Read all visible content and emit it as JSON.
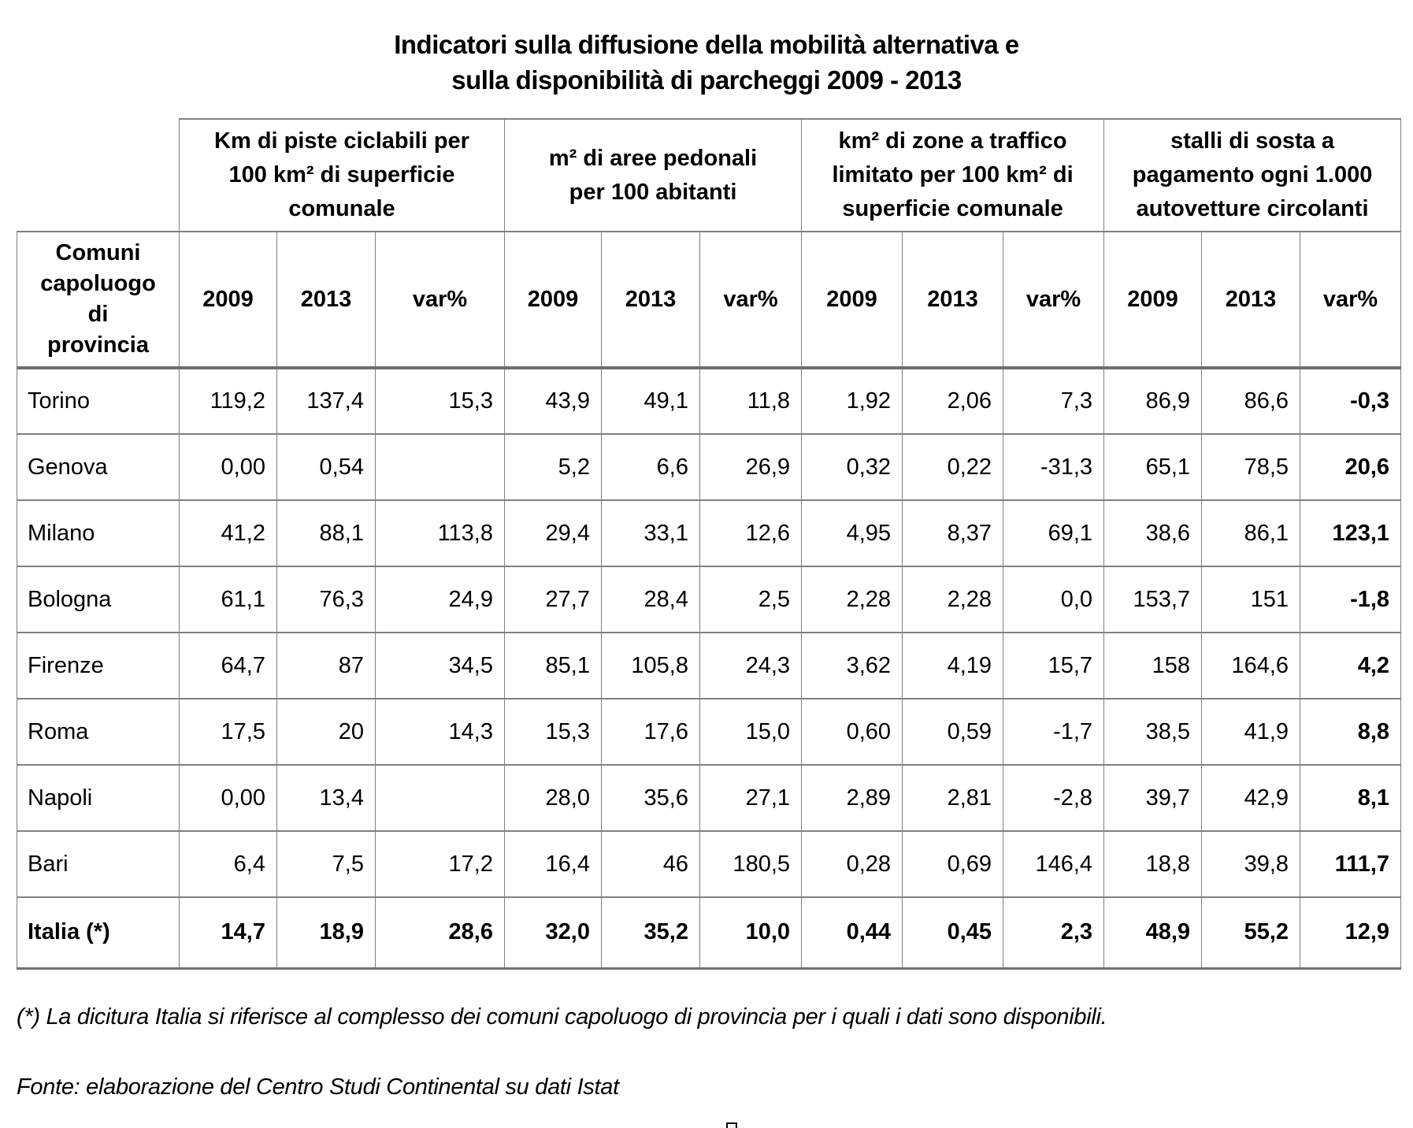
{
  "title": "Indicatori sulla diffusione della mobilità alternativa e\nsulla disponibilità di parcheggi 2009 - 2013",
  "table": {
    "row_header": "Comuni\ncapoluogo\ndi\nprovincia",
    "column_groups": [
      {
        "label": "Km di piste ciclabili per\n100 km² di superficie\ncomunale"
      },
      {
        "label": "m² di aree pedonali\nper 100 abitanti"
      },
      {
        "label": "km² di zone a traffico\nlimitato per 100 km² di\nsuperficie comunale"
      },
      {
        "label": "stalli di sosta a\npagamento ogni 1.000\nautovetture circolanti"
      }
    ],
    "sub_headers": [
      "2009",
      "2013",
      "var%",
      "2009",
      "2013",
      "var%",
      "2009",
      "2013",
      "var%",
      "2009",
      "2013",
      "var%"
    ],
    "rows": [
      {
        "city": "Torino",
        "bold": false,
        "values": [
          "119,2",
          "137,4",
          "15,3",
          "43,9",
          "49,1",
          "11,8",
          "1,92",
          "2,06",
          "7,3",
          "86,9",
          "86,6",
          "-0,3"
        ]
      },
      {
        "city": "Genova",
        "bold": false,
        "values": [
          "0,00",
          "0,54",
          "",
          "5,2",
          "6,6",
          "26,9",
          "0,32",
          "0,22",
          "-31,3",
          "65,1",
          "78,5",
          "20,6"
        ]
      },
      {
        "city": "Milano",
        "bold": false,
        "values": [
          "41,2",
          "88,1",
          "113,8",
          "29,4",
          "33,1",
          "12,6",
          "4,95",
          "8,37",
          "69,1",
          "38,6",
          "86,1",
          "123,1"
        ]
      },
      {
        "city": "Bologna",
        "bold": false,
        "values": [
          "61,1",
          "76,3",
          "24,9",
          "27,7",
          "28,4",
          "2,5",
          "2,28",
          "2,28",
          "0,0",
          "153,7",
          "151",
          "-1,8"
        ]
      },
      {
        "city": "Firenze",
        "bold": false,
        "values": [
          "64,7",
          "87",
          "34,5",
          "85,1",
          "105,8",
          "24,3",
          "3,62",
          "4,19",
          "15,7",
          "158",
          "164,6",
          "4,2"
        ]
      },
      {
        "city": "Roma",
        "bold": false,
        "values": [
          "17,5",
          "20",
          "14,3",
          "15,3",
          "17,6",
          "15,0",
          "0,60",
          "0,59",
          "-1,7",
          "38,5",
          "41,9",
          "8,8"
        ]
      },
      {
        "city": "Napoli",
        "bold": false,
        "values": [
          "0,00",
          "13,4",
          "",
          "28,0",
          "35,6",
          "27,1",
          "2,89",
          "2,81",
          "-2,8",
          "39,7",
          "42,9",
          "8,1"
        ]
      },
      {
        "city": "Bari",
        "bold": false,
        "values": [
          "6,4",
          "7,5",
          "17,2",
          "16,4",
          "46",
          "180,5",
          "0,28",
          "0,69",
          "146,4",
          "18,8",
          "39,8",
          "111,7"
        ]
      },
      {
        "city": "Italia (*)",
        "bold": true,
        "values": [
          "14,7",
          "18,9",
          "28,6",
          "32,0",
          "35,2",
          "10,0",
          "0,44",
          "0,45",
          "2,3",
          "48,9",
          "55,2",
          "12,9"
        ]
      }
    ]
  },
  "footnote": "(*) La dicitura Italia si riferisce al complesso dei comuni capoluogo di provincia per i quali i dati sono disponibili.",
  "source": "Fonte: elaborazione del Centro Studi Continental su dati Istat"
}
